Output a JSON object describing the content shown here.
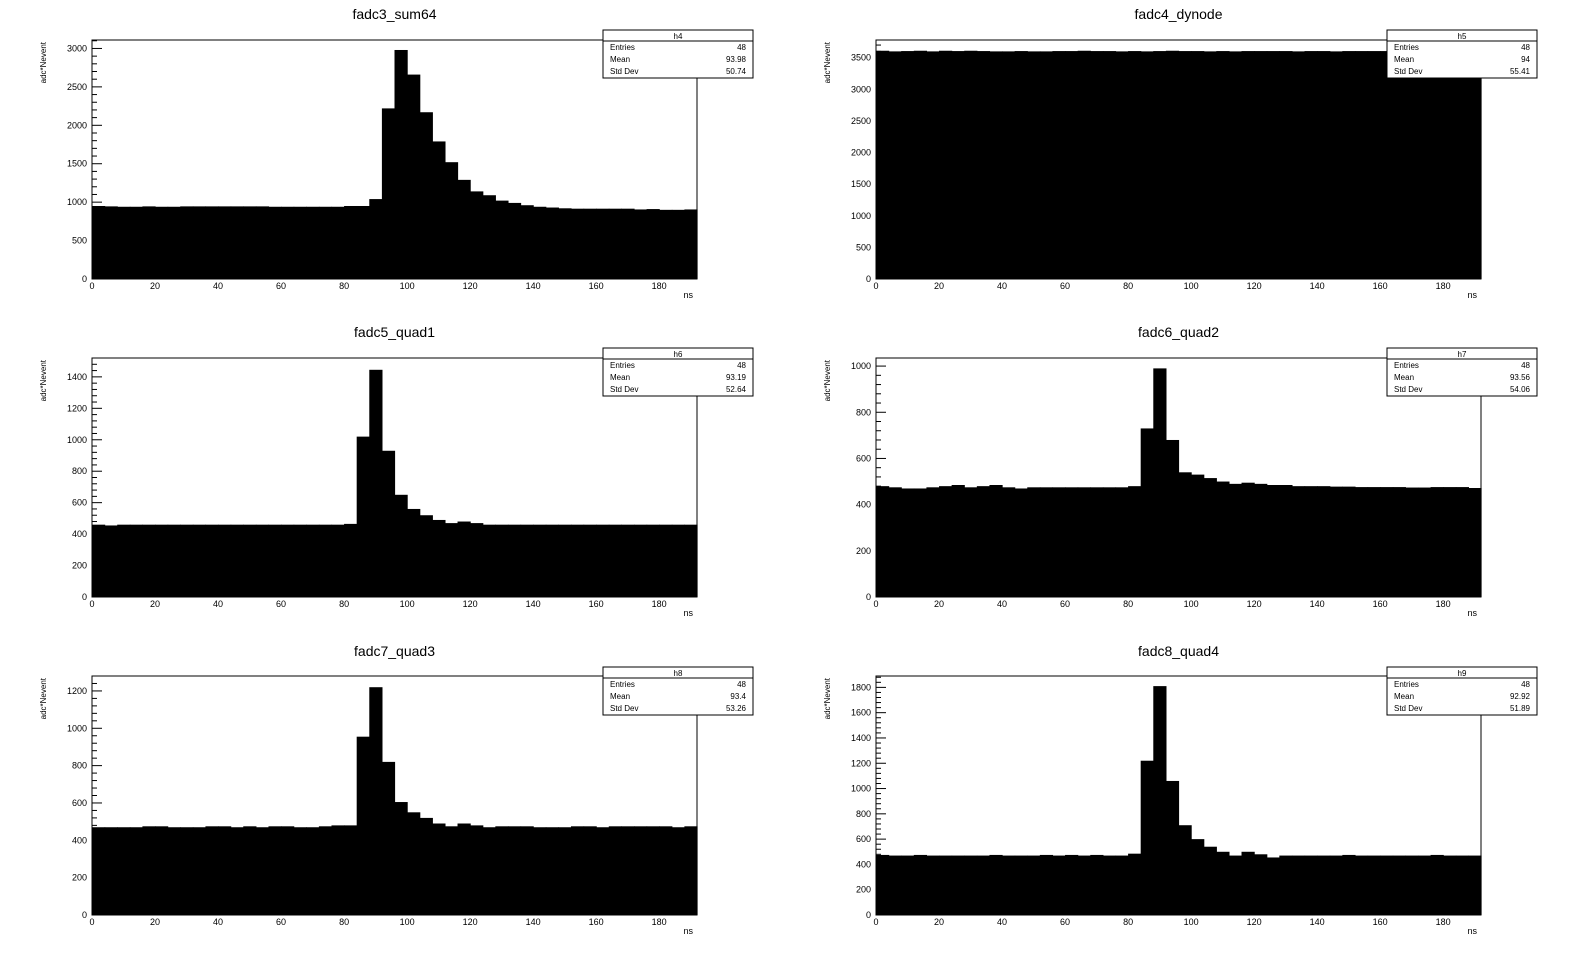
{
  "chart_data": [
    {
      "type": "bar",
      "title": "fadc3_sum64",
      "xlabel": "ns",
      "ylabel": "adc*Nevent",
      "xlim": [
        0,
        192
      ],
      "ylim": [
        0,
        3110
      ],
      "xticks": [
        0,
        20,
        40,
        60,
        80,
        100,
        120,
        140,
        160,
        180
      ],
      "yticks": [
        0,
        500,
        1000,
        1500,
        2000,
        2500,
        3000
      ],
      "bin_width": 4,
      "values": [
        950,
        945,
        940,
        940,
        945,
        940,
        940,
        945,
        945,
        945,
        945,
        945,
        945,
        945,
        940,
        940,
        940,
        940,
        940,
        940,
        950,
        950,
        1040,
        2220,
        2980,
        2660,
        2170,
        1790,
        1520,
        1290,
        1140,
        1090,
        1020,
        990,
        960,
        940,
        930,
        920,
        915,
        915,
        915,
        915,
        915,
        905,
        910,
        900,
        900,
        905
      ],
      "stats": {
        "name": "h4",
        "entries": "48",
        "mean": "93.98",
        "std_dev": "50.74"
      }
    },
    {
      "type": "bar",
      "title": "fadc4_dynode",
      "xlabel": "ns",
      "ylabel": "adc*Nevent",
      "xlim": [
        0,
        192
      ],
      "ylim": [
        0,
        3780
      ],
      "xticks": [
        0,
        20,
        40,
        60,
        80,
        100,
        120,
        140,
        160,
        180
      ],
      "yticks": [
        0,
        500,
        1000,
        1500,
        2000,
        2500,
        3000,
        3500
      ],
      "bin_width": 4,
      "values": [
        3610,
        3600,
        3605,
        3610,
        3600,
        3610,
        3605,
        3610,
        3605,
        3600,
        3600,
        3605,
        3600,
        3600,
        3605,
        3605,
        3610,
        3605,
        3605,
        3600,
        3605,
        3600,
        3605,
        3610,
        3605,
        3605,
        3600,
        3605,
        3600,
        3605,
        3605,
        3605,
        3605,
        3600,
        3605,
        3605,
        3600,
        3605,
        3605,
        3605,
        3605,
        3600,
        3605,
        3605,
        3600,
        3600,
        3600,
        3605
      ],
      "stats": {
        "name": "h5",
        "entries": "48",
        "mean": "94",
        "std_dev": "55.41"
      }
    },
    {
      "type": "bar",
      "title": "fadc5_quad1",
      "xlabel": "ns",
      "ylabel": "adc*Nevent",
      "xlim": [
        0,
        192
      ],
      "ylim": [
        0,
        1520
      ],
      "xticks": [
        0,
        20,
        40,
        60,
        80,
        100,
        120,
        140,
        160,
        180
      ],
      "yticks": [
        0,
        200,
        400,
        600,
        800,
        1000,
        1200,
        1400
      ],
      "bin_width": 4,
      "values": [
        460,
        455,
        460,
        460,
        460,
        460,
        460,
        460,
        460,
        460,
        460,
        460,
        460,
        460,
        460,
        460,
        460,
        460,
        460,
        460,
        465,
        1020,
        1445,
        930,
        650,
        560,
        520,
        490,
        470,
        480,
        470,
        460,
        460,
        460,
        460,
        460,
        460,
        460,
        460,
        460,
        460,
        460,
        460,
        460,
        460,
        460,
        460,
        460
      ],
      "stats": {
        "name": "h6",
        "entries": "48",
        "mean": "93.19",
        "std_dev": "52.64"
      }
    },
    {
      "type": "bar",
      "title": "fadc6_quad2",
      "xlabel": "ns",
      "ylabel": "adc*Nevent",
      "xlim": [
        0,
        192
      ],
      "ylim": [
        0,
        1035
      ],
      "xticks": [
        0,
        20,
        40,
        60,
        80,
        100,
        120,
        140,
        160,
        180
      ],
      "yticks": [
        0,
        200,
        400,
        600,
        800,
        1000
      ],
      "bin_width": 4,
      "values": [
        480,
        475,
        470,
        470,
        475,
        480,
        485,
        475,
        480,
        485,
        475,
        470,
        475,
        475,
        475,
        475,
        475,
        475,
        475,
        475,
        480,
        730,
        990,
        680,
        540,
        530,
        515,
        500,
        490,
        495,
        490,
        485,
        485,
        480,
        480,
        480,
        478,
        478,
        476,
        476,
        476,
        476,
        474,
        474,
        476,
        476,
        476,
        472
      ],
      "stats": {
        "name": "h7",
        "entries": "48",
        "mean": "93.56",
        "std_dev": "54.06"
      }
    },
    {
      "type": "bar",
      "title": "fadc7_quad3",
      "xlabel": "ns",
      "ylabel": "adc*Nevent",
      "xlim": [
        0,
        192
      ],
      "ylim": [
        0,
        1280
      ],
      "xticks": [
        0,
        20,
        40,
        60,
        80,
        100,
        120,
        140,
        160,
        180
      ],
      "yticks": [
        0,
        200,
        400,
        600,
        800,
        1000,
        1200
      ],
      "bin_width": 4,
      "values": [
        470,
        470,
        470,
        470,
        475,
        475,
        470,
        470,
        470,
        475,
        475,
        470,
        475,
        470,
        475,
        475,
        470,
        470,
        475,
        480,
        480,
        955,
        1220,
        820,
        605,
        550,
        520,
        490,
        475,
        490,
        480,
        470,
        475,
        475,
        475,
        470,
        470,
        470,
        475,
        475,
        470,
        475,
        475,
        475,
        475,
        475,
        470,
        475
      ],
      "stats": {
        "name": "h8",
        "entries": "48",
        "mean": "93.4",
        "std_dev": "53.26"
      }
    },
    {
      "type": "bar",
      "title": "fadc8_quad4",
      "xlabel": "ns",
      "ylabel": "adc*Nevent",
      "xlim": [
        0,
        192
      ],
      "ylim": [
        0,
        1890
      ],
      "xticks": [
        0,
        20,
        40,
        60,
        80,
        100,
        120,
        140,
        160,
        180
      ],
      "yticks": [
        0,
        200,
        400,
        600,
        800,
        1000,
        1200,
        1400,
        1600,
        1800
      ],
      "bin_width": 4,
      "values": [
        475,
        470,
        470,
        475,
        470,
        470,
        470,
        470,
        470,
        475,
        470,
        470,
        470,
        475,
        470,
        475,
        470,
        475,
        470,
        470,
        485,
        1220,
        1810,
        1060,
        710,
        600,
        540,
        500,
        470,
        500,
        480,
        455,
        470,
        470,
        470,
        470,
        470,
        475,
        470,
        470,
        470,
        470,
        470,
        470,
        475,
        470,
        470,
        470
      ],
      "stats": {
        "name": "h9",
        "entries": "48",
        "mean": "92.92",
        "std_dev": "51.89"
      }
    }
  ],
  "stat_labels": {
    "entries": "Entries",
    "mean": "Mean",
    "std_dev": "Std Dev"
  }
}
